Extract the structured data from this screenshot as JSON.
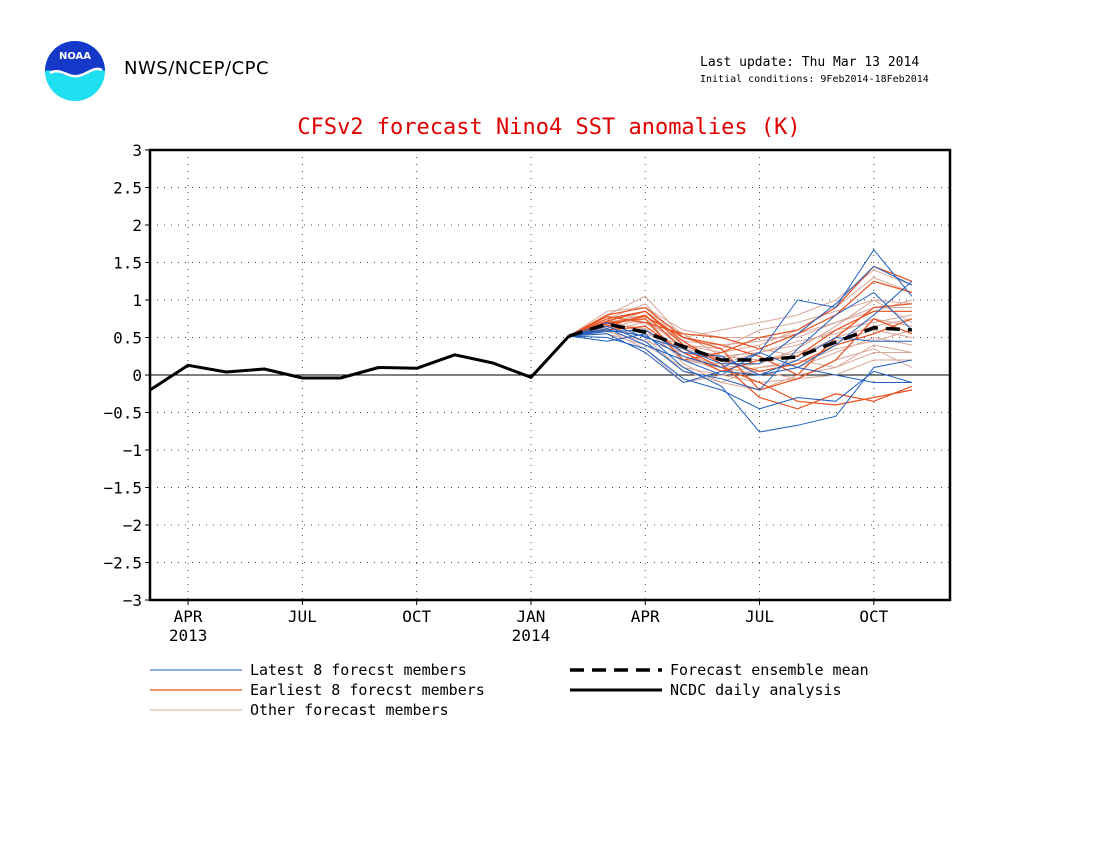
{
  "header": {
    "logo_text": "NOAA",
    "org": "NWS/NCEP/CPC",
    "last_update": "Last update: Thu Mar 13 2014",
    "initial_conditions": "Initial conditions: 9Feb2014-18Feb2014"
  },
  "colors": {
    "title": "#e00000",
    "latest": "#1f5fbf",
    "earliest": "#e8501e",
    "other": "#d9a79a",
    "observed": "#000000",
    "mean": "#000000"
  },
  "chart_data": {
    "type": "line",
    "title": "CFSv2 forecast Nino4 SST anomalies (K)",
    "xlabel": "",
    "ylabel": "",
    "ylim": [
      -3,
      3
    ],
    "yticks": [
      3,
      2.5,
      2,
      1.5,
      1,
      0.5,
      0,
      -0.5,
      -1,
      -1.5,
      -2,
      -2.5,
      -3
    ],
    "ytick_labels": [
      "3",
      "2.5",
      "2",
      "1.5",
      "1",
      "0.5",
      "0",
      "−0.5",
      "−1",
      "−1.5",
      "−2",
      "−2.5",
      "−3"
    ],
    "xlim_months": [
      "2013-03-01",
      "2014-12-01"
    ],
    "xticks": [
      {
        "date": "2013-04-01",
        "label": "APR",
        "label2": "2013"
      },
      {
        "date": "2013-07-01",
        "label": "JUL",
        "label2": ""
      },
      {
        "date": "2013-10-01",
        "label": "OCT",
        "label2": ""
      },
      {
        "date": "2014-01-01",
        "label": "JAN",
        "label2": "2014"
      },
      {
        "date": "2014-04-01",
        "label": "APR",
        "label2": ""
      },
      {
        "date": "2014-07-01",
        "label": "JUL",
        "label2": ""
      },
      {
        "date": "2014-10-01",
        "label": "OCT",
        "label2": ""
      }
    ],
    "grid": true,
    "zero_line": true,
    "observed": {
      "name": "NCDC daily analysis",
      "x": [
        "2013-03-01",
        "2013-04-01",
        "2013-05-01",
        "2013-06-01",
        "2013-07-01",
        "2013-08-01",
        "2013-09-01",
        "2013-10-01",
        "2013-11-01",
        "2013-12-01",
        "2014-01-01",
        "2014-02-01"
      ],
      "y": [
        -0.2,
        0.13,
        0.04,
        0.08,
        -0.04,
        -0.04,
        0.1,
        0.09,
        0.27,
        0.16,
        -0.03,
        0.52
      ]
    },
    "forecast_x": [
      "2014-02-01",
      "2014-03-01",
      "2014-04-01",
      "2014-05-01",
      "2014-06-01",
      "2014-07-01",
      "2014-08-01",
      "2014-09-01",
      "2014-10-01",
      "2014-11-01"
    ],
    "ensemble_mean": {
      "name": "Forecast ensemble mean",
      "y": [
        0.52,
        0.68,
        0.57,
        0.38,
        0.2,
        0.2,
        0.24,
        0.44,
        0.63,
        0.6
      ]
    },
    "latest_members": {
      "name": "Latest 8 forecst members",
      "series": [
        [
          0.52,
          0.45,
          0.55,
          0.1,
          -0.15,
          -0.76,
          -0.67,
          -0.55,
          0.1,
          0.2
        ],
        [
          0.52,
          0.6,
          0.52,
          0.25,
          0.1,
          0.3,
          1.0,
          0.9,
          1.67,
          1.05
        ],
        [
          0.52,
          0.55,
          0.3,
          -0.1,
          0.05,
          0.0,
          0.1,
          0.4,
          0.8,
          1.25
        ],
        [
          0.52,
          0.65,
          0.45,
          0.05,
          -0.05,
          -0.2,
          0.35,
          0.8,
          1.1,
          0.6
        ],
        [
          0.52,
          0.58,
          0.6,
          0.3,
          0.25,
          0.0,
          0.2,
          0.5,
          0.45,
          0.45
        ],
        [
          0.52,
          0.5,
          0.35,
          -0.05,
          -0.2,
          -0.45,
          -0.3,
          -0.35,
          0.05,
          -0.1
        ],
        [
          0.52,
          0.7,
          0.5,
          0.35,
          0.15,
          0.15,
          0.55,
          0.95,
          1.45,
          1.2
        ],
        [
          0.52,
          0.62,
          0.4,
          0.2,
          0.0,
          0.3,
          0.1,
          0.0,
          -0.1,
          -0.1
        ]
      ]
    },
    "earliest_members": {
      "name": "Earliest 8 forecst members",
      "series": [
        [
          0.52,
          0.75,
          0.85,
          0.45,
          0.15,
          -0.3,
          -0.45,
          -0.25,
          -0.35,
          -0.15
        ],
        [
          0.52,
          0.7,
          0.75,
          0.2,
          0.3,
          0.5,
          0.6,
          0.9,
          1.45,
          1.25
        ],
        [
          0.52,
          0.8,
          0.9,
          0.5,
          0.4,
          0.25,
          0.0,
          0.5,
          0.9,
          0.95
        ],
        [
          0.52,
          0.65,
          0.8,
          0.35,
          0.1,
          -0.1,
          -0.35,
          -0.4,
          -0.3,
          -0.2
        ],
        [
          0.52,
          0.78,
          0.7,
          0.55,
          0.5,
          0.35,
          0.55,
          0.8,
          1.25,
          1.1
        ],
        [
          0.52,
          0.6,
          0.65,
          0.3,
          0.05,
          0.2,
          0.25,
          0.6,
          0.85,
          0.85
        ],
        [
          0.52,
          0.72,
          0.85,
          0.4,
          0.2,
          0.05,
          0.15,
          0.4,
          0.55,
          0.75
        ],
        [
          0.52,
          0.68,
          0.78,
          0.5,
          0.35,
          -0.2,
          -0.05,
          0.2,
          0.75,
          0.55
        ]
      ]
    },
    "other_members": {
      "name": "Other forecast members",
      "series": [
        [
          0.52,
          0.75,
          0.95,
          0.4,
          0.3,
          0.4,
          0.6,
          0.9,
          1.3,
          1.1
        ],
        [
          0.52,
          0.6,
          0.7,
          0.3,
          0.1,
          0.0,
          0.1,
          0.3,
          0.5,
          0.4
        ],
        [
          0.52,
          0.8,
          1.05,
          0.5,
          0.6,
          0.7,
          0.8,
          1.0,
          1.4,
          1.2
        ],
        [
          0.52,
          0.55,
          0.4,
          0.1,
          0.0,
          -0.1,
          -0.05,
          0.0,
          0.2,
          0.2
        ],
        [
          0.52,
          0.7,
          0.6,
          0.2,
          0.15,
          0.3,
          0.4,
          0.6,
          0.7,
          0.8
        ],
        [
          0.52,
          0.65,
          0.5,
          0.05,
          -0.1,
          0.1,
          0.2,
          0.1,
          0.3,
          0.3
        ],
        [
          0.52,
          0.85,
          0.9,
          0.6,
          0.5,
          0.5,
          0.5,
          0.7,
          0.9,
          0.9
        ],
        [
          0.52,
          0.62,
          0.75,
          0.35,
          0.25,
          0.2,
          0.3,
          0.45,
          0.6,
          0.5
        ],
        [
          0.52,
          0.7,
          0.8,
          0.15,
          -0.1,
          -0.2,
          0.0,
          0.1,
          0.4,
          0.3
        ],
        [
          0.52,
          0.58,
          0.45,
          0.3,
          0.2,
          0.35,
          0.25,
          0.5,
          0.65,
          0.75
        ],
        [
          0.52,
          0.75,
          0.55,
          0.4,
          0.35,
          0.6,
          0.7,
          0.85,
          1.0,
          0.95
        ],
        [
          0.52,
          0.68,
          0.62,
          0.25,
          0.05,
          0.1,
          0.15,
          0.35,
          0.45,
          0.6
        ],
        [
          0.52,
          0.6,
          0.35,
          -0.1,
          0.0,
          0.05,
          -0.05,
          0.2,
          0.35,
          0.1
        ],
        [
          0.52,
          0.72,
          0.7,
          0.45,
          0.4,
          0.45,
          0.55,
          0.7,
          0.85,
          1.0
        ],
        [
          0.52,
          0.66,
          0.85,
          0.55,
          0.25,
          0.3,
          0.45,
          0.55,
          0.75,
          0.65
        ],
        [
          0.52,
          0.64,
          0.6,
          0.2,
          0.1,
          0.15,
          0.35,
          0.65,
          1.0,
          0.7
        ]
      ]
    },
    "legend": {
      "placement": "bottom",
      "items": [
        {
          "key": "latest",
          "label": "Latest 8 forecst members"
        },
        {
          "key": "earliest",
          "label": "Earliest 8 forecst members"
        },
        {
          "key": "other",
          "label": "Other forecast members"
        },
        {
          "key": "mean",
          "label": "Forecast ensemble mean"
        },
        {
          "key": "observed",
          "label": "NCDC daily analysis"
        }
      ]
    }
  }
}
